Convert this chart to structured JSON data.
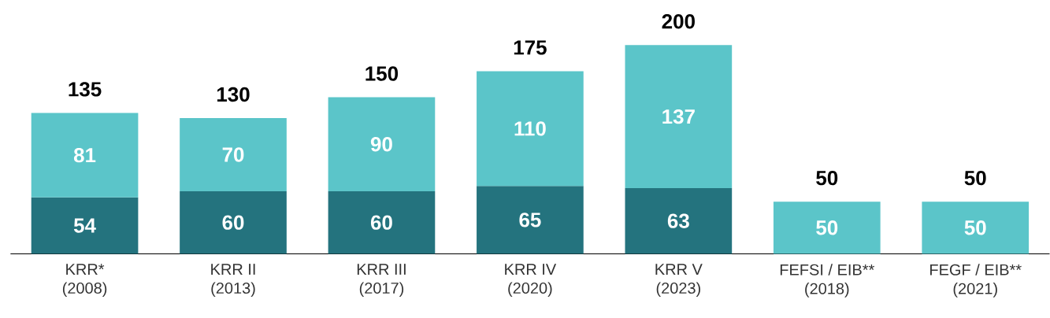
{
  "chart_data": {
    "type": "bar",
    "stacked": true,
    "data_labels": true,
    "categories": [
      "KRR* (2008)",
      "KRR II (2013)",
      "KRR III (2017)",
      "KRR IV (2020)",
      "KRR V (2023)",
      "FEFSI / EIB** (2018)",
      "FEGF / EIB** (2021)"
    ],
    "series": [
      {
        "color": "#24737e",
        "values": [
          54,
          60,
          60,
          65,
          63,
          null,
          null
        ]
      },
      {
        "color": "#5bc5c9",
        "values": [
          81,
          70,
          90,
          110,
          137,
          50,
          50
        ]
      }
    ],
    "totals": [
      "135",
      "130",
      "150",
      "175",
      "200",
      "50",
      "50"
    ]
  }
}
